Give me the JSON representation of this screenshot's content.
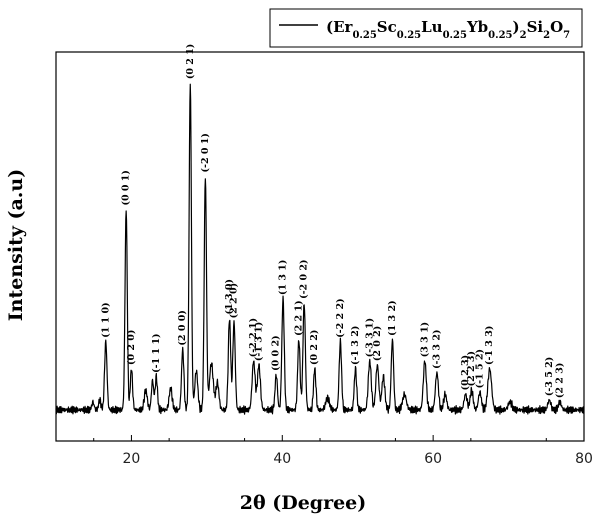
{
  "chart_data": {
    "type": "line",
    "xlabel": "2θ (Degree)",
    "ylabel": "Intensity (a.u)",
    "xlim": [
      10,
      80
    ],
    "ylim": [
      0,
      100
    ],
    "x_ticks": [
      20,
      40,
      60,
      80
    ],
    "x_tick_labels": [
      "20",
      "40",
      "60",
      "80"
    ],
    "y_ticks_shown": false,
    "grid": false,
    "legend_position": "top-right",
    "series": [
      {
        "name": "(Er0.25Sc0.25Lu0.25Yb0.25)2Si2O7",
        "legend_parts": [
          {
            "t": "(Er",
            "sub": false
          },
          {
            "t": "0.25",
            "sub": true
          },
          {
            "t": "Sc",
            "sub": false
          },
          {
            "t": "0.25",
            "sub": true
          },
          {
            "t": "Lu",
            "sub": false
          },
          {
            "t": "0.25",
            "sub": true
          },
          {
            "t": "Yb",
            "sub": false
          },
          {
            "t": "0.25",
            "sub": true
          },
          {
            "t": ")",
            "sub": false
          },
          {
            "t": "2",
            "sub": true
          },
          {
            "t": "Si",
            "sub": false
          },
          {
            "t": "2",
            "sub": true
          },
          {
            "t": "O",
            "sub": false
          },
          {
            "t": "7",
            "sub": true
          }
        ],
        "baseline": 8,
        "color": "#000000",
        "peaks": [
          {
            "x": 14.9,
            "y": 10,
            "w": 0.15,
            "label": ""
          },
          {
            "x": 15.8,
            "y": 10.5,
            "w": 0.15,
            "label": ""
          },
          {
            "x": 16.6,
            "y": 25.5,
            "w": 0.16,
            "label": "(1 1 0)"
          },
          {
            "x": 19.3,
            "y": 59.5,
            "w": 0.15,
            "label": "(0 0 1)"
          },
          {
            "x": 20.0,
            "y": 18.5,
            "w": 0.15,
            "label": "(0 2 0)"
          },
          {
            "x": 21.9,
            "y": 13,
            "w": 0.2,
            "label": ""
          },
          {
            "x": 22.8,
            "y": 15.5,
            "w": 0.15,
            "label": ""
          },
          {
            "x": 23.3,
            "y": 16.5,
            "w": 0.15,
            "label": "(-1 1 1)"
          },
          {
            "x": 25.2,
            "y": 13.5,
            "w": 0.2,
            "label": ""
          },
          {
            "x": 26.8,
            "y": 23.5,
            "w": 0.16,
            "label": "(2 0 0)"
          },
          {
            "x": 27.8,
            "y": 92,
            "w": 0.15,
            "label": "(0 2 1)"
          },
          {
            "x": 28.6,
            "y": 18,
            "w": 0.2,
            "label": ""
          },
          {
            "x": 29.8,
            "y": 68,
            "w": 0.15,
            "label": "(-2 0 1)"
          },
          {
            "x": 30.6,
            "y": 20,
            "w": 0.25,
            "label": ""
          },
          {
            "x": 31.4,
            "y": 15,
            "w": 0.2,
            "label": ""
          },
          {
            "x": 33.0,
            "y": 31.5,
            "w": 0.16,
            "label": "(1 3 0)"
          },
          {
            "x": 33.6,
            "y": 30.5,
            "w": 0.16,
            "label": "(2 2 0)"
          },
          {
            "x": 36.2,
            "y": 20.5,
            "w": 0.2,
            "label": "(-2 2 1)"
          },
          {
            "x": 36.9,
            "y": 19.5,
            "w": 0.2,
            "label": "(-1 3 1)"
          },
          {
            "x": 39.2,
            "y": 17,
            "w": 0.16,
            "label": "(0 0 2)"
          },
          {
            "x": 40.1,
            "y": 36.5,
            "w": 0.16,
            "label": "(1 3 1)"
          },
          {
            "x": 42.2,
            "y": 26,
            "w": 0.16,
            "label": "(2 2 1)"
          },
          {
            "x": 42.9,
            "y": 35.5,
            "w": 0.16,
            "label": "(-2 0 2)"
          },
          {
            "x": 44.3,
            "y": 18.5,
            "w": 0.16,
            "label": "(0 2 2)"
          },
          {
            "x": 46.0,
            "y": 11,
            "w": 0.25,
            "label": ""
          },
          {
            "x": 47.7,
            "y": 25.5,
            "w": 0.16,
            "label": "(-2 2 2)"
          },
          {
            "x": 49.7,
            "y": 18.5,
            "w": 0.16,
            "label": "(-1 3 2)"
          },
          {
            "x": 51.6,
            "y": 20.5,
            "w": 0.2,
            "label": "(-3 3 1)"
          },
          {
            "x": 52.6,
            "y": 19.5,
            "w": 0.2,
            "label": "(2 0 2)"
          },
          {
            "x": 53.4,
            "y": 16.5,
            "w": 0.2,
            "label": ""
          },
          {
            "x": 54.6,
            "y": 26,
            "w": 0.16,
            "label": "(1 3 2)"
          },
          {
            "x": 56.2,
            "y": 12,
            "w": 0.25,
            "label": ""
          },
          {
            "x": 58.9,
            "y": 20.5,
            "w": 0.2,
            "label": "(3 3 1)"
          },
          {
            "x": 60.5,
            "y": 17.5,
            "w": 0.2,
            "label": "(-3 3 2)"
          },
          {
            "x": 61.6,
            "y": 12,
            "w": 0.2,
            "label": ""
          },
          {
            "x": 64.3,
            "y": 12,
            "w": 0.2,
            "label": "(0 2 3)"
          },
          {
            "x": 65.1,
            "y": 13,
            "w": 0.2,
            "label": "(2 2 3)"
          },
          {
            "x": 66.2,
            "y": 12.5,
            "w": 0.2,
            "label": "(-1 5 2)"
          },
          {
            "x": 67.5,
            "y": 18.5,
            "w": 0.25,
            "label": "(-1 3 3)"
          },
          {
            "x": 70.2,
            "y": 10,
            "w": 0.25,
            "label": ""
          },
          {
            "x": 75.4,
            "y": 10.5,
            "w": 0.2,
            "label": "(-3 5 2)"
          },
          {
            "x": 76.8,
            "y": 10,
            "w": 0.2,
            "label": "(2 2 3)"
          }
        ]
      }
    ]
  }
}
